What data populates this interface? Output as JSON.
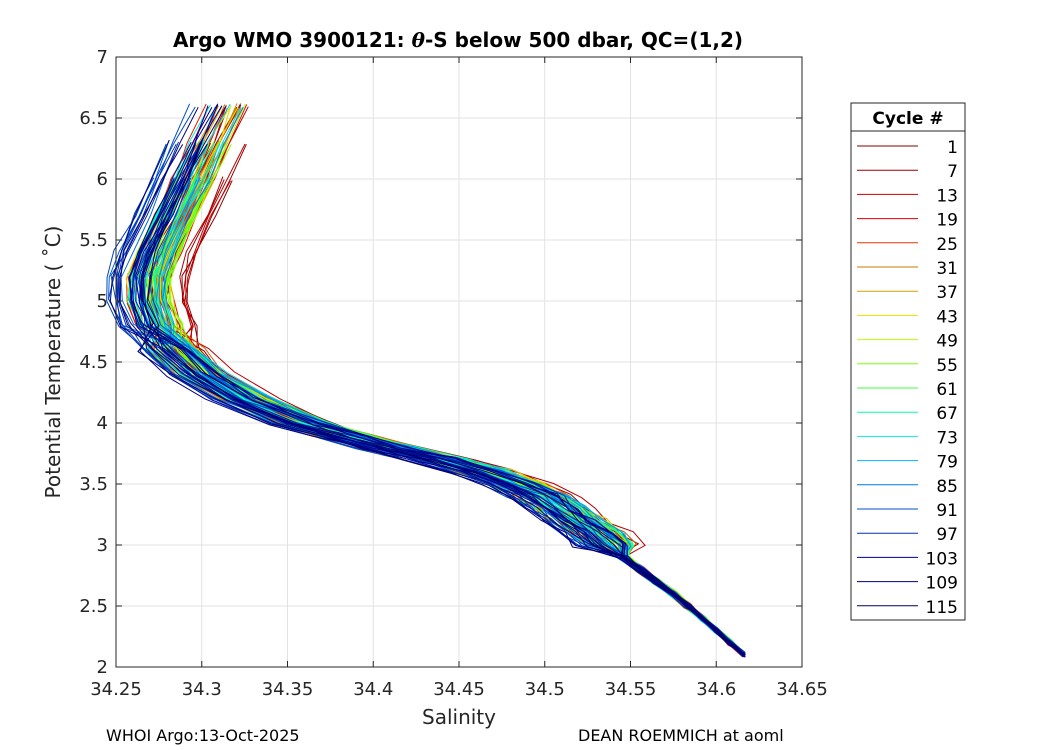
{
  "chart_data": {
    "type": "line",
    "title_prefix": "Argo WMO 3900121: ",
    "title_theta": "θ",
    "title_suffix": "-S below 500 dbar,  QC=(1,2)",
    "xlabel": "Salinity",
    "ylabel": "Potential Temperature ( ˚C)",
    "xlim": [
      34.25,
      34.65
    ],
    "ylim": [
      2,
      7
    ],
    "xticks": [
      34.25,
      34.3,
      34.35,
      34.4,
      34.45,
      34.5,
      34.55,
      34.6,
      34.65
    ],
    "xtick_labels": [
      "34.25",
      "34.3",
      "34.35",
      "34.4",
      "34.45",
      "34.5",
      "34.55",
      "34.6",
      "34.65"
    ],
    "yticks": [
      2,
      2.5,
      3,
      3.5,
      4,
      4.5,
      5,
      5.5,
      6,
      6.5,
      7
    ],
    "ytick_labels": [
      "2",
      "2.5",
      "3",
      "3.5",
      "4",
      "4.5",
      "5",
      "5.5",
      "6",
      "6.5",
      "7"
    ],
    "grid": true,
    "legend_title": "Cycle #",
    "legend_position": "right-outside",
    "legend_entries": [
      "1",
      "7",
      "13",
      "19",
      "25",
      "31",
      "37",
      "43",
      "49",
      "55",
      "61",
      "67",
      "73",
      "79",
      "85",
      "91",
      "97",
      "103",
      "109",
      "115"
    ],
    "legend_colors": [
      "#800000",
      "#9a0000",
      "#c80000",
      "#e00000",
      "#f03000",
      "#c87800",
      "#d2a000",
      "#e8e000",
      "#b4ff00",
      "#78ff00",
      "#3cff3c",
      "#00ffa0",
      "#00f0e0",
      "#00b4ff",
      "#0078e6",
      "#0050c8",
      "#0030b4",
      "#000096",
      "#000082",
      "#000064"
    ],
    "cycles": [
      1,
      7,
      13,
      19,
      25,
      31,
      37,
      43,
      49,
      55,
      61,
      67,
      73,
      79,
      85,
      91,
      97,
      103,
      109,
      115
    ],
    "series_template": {
      "theta": [
        6.6,
        6.3,
        6.0,
        5.7,
        5.4,
        5.2,
        5.0,
        4.8,
        4.6,
        4.4,
        4.2,
        4.0,
        3.9,
        3.8,
        3.7,
        3.6,
        3.5,
        3.4,
        3.3,
        3.2,
        3.1,
        3.0,
        2.9,
        2.8,
        2.7,
        2.6,
        2.5,
        2.4,
        2.3,
        2.2,
        2.1
      ],
      "salinity": [
        34.315,
        34.305,
        34.295,
        34.285,
        34.275,
        34.27,
        34.27,
        34.275,
        34.285,
        34.3,
        34.325,
        34.36,
        34.385,
        34.41,
        34.44,
        34.465,
        34.485,
        34.5,
        34.51,
        34.52,
        34.53,
        34.538,
        34.546,
        34.555,
        34.565,
        34.575,
        34.583,
        34.592,
        34.6,
        34.608,
        34.616
      ]
    }
  },
  "footer": {
    "left": "WHOI Argo:13-Oct-2025",
    "right": "DEAN ROEMMICH at aoml"
  }
}
